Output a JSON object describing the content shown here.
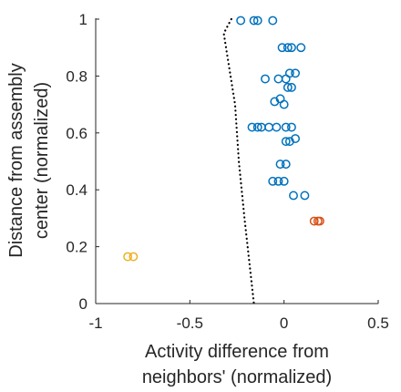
{
  "chart_data": {
    "type": "scatter",
    "title": "",
    "xlabel": [
      "Activity difference from",
      "neighbors' (normalized)"
    ],
    "ylabel": [
      "Distance from assembly",
      "center (normalized)"
    ],
    "xlim": [
      -1,
      0.5
    ],
    "ylim": [
      0,
      1
    ],
    "xticks": [
      -1,
      -0.5,
      0,
      0.5
    ],
    "xtick_labels": [
      "-1",
      "-0.5",
      "0",
      "0.5"
    ],
    "yticks": [
      0,
      0.2,
      0.4,
      0.6,
      0.8,
      1
    ],
    "ytick_labels": [
      "0",
      "0.2",
      "0.4",
      "0.6",
      "0.8",
      "1"
    ],
    "grid": false,
    "legend": "none",
    "marker": "open-circle",
    "series": [
      {
        "color": "#0072BD",
        "points": [
          [
            -0.23,
            0.995
          ],
          [
            -0.16,
            0.995
          ],
          [
            -0.14,
            0.995
          ],
          [
            -0.06,
            0.995
          ],
          [
            -0.01,
            0.9
          ],
          [
            0.02,
            0.9
          ],
          [
            0.04,
            0.9
          ],
          [
            0.09,
            0.9
          ],
          [
            -0.1,
            0.79
          ],
          [
            -0.03,
            0.79
          ],
          [
            0.01,
            0.79
          ],
          [
            0.03,
            0.81
          ],
          [
            0.06,
            0.81
          ],
          [
            0.02,
            0.76
          ],
          [
            0.04,
            0.76
          ],
          [
            -0.05,
            0.71
          ],
          [
            -0.02,
            0.72
          ],
          [
            0.0,
            0.7
          ],
          [
            -0.17,
            0.62
          ],
          [
            -0.14,
            0.62
          ],
          [
            -0.12,
            0.62
          ],
          [
            -0.08,
            0.62
          ],
          [
            -0.04,
            0.62
          ],
          [
            0.01,
            0.62
          ],
          [
            0.04,
            0.62
          ],
          [
            0.01,
            0.57
          ],
          [
            0.03,
            0.57
          ],
          [
            0.06,
            0.58
          ],
          [
            -0.02,
            0.49
          ],
          [
            0.01,
            0.49
          ],
          [
            -0.06,
            0.43
          ],
          [
            -0.03,
            0.43
          ],
          [
            0.0,
            0.43
          ],
          [
            0.05,
            0.38
          ],
          [
            0.11,
            0.38
          ]
        ]
      },
      {
        "color": "#D95319",
        "points": [
          [
            0.16,
            0.29
          ],
          [
            0.18,
            0.29
          ],
          [
            0.19,
            0.29
          ]
        ]
      },
      {
        "color": "#EDB120",
        "points": [
          [
            -0.83,
            0.165
          ],
          [
            -0.8,
            0.165
          ]
        ]
      }
    ],
    "reference_line": {
      "style": "dotted",
      "color": "#000000",
      "points": [
        [
          -0.28,
          1.0
        ],
        [
          -0.32,
          0.95
        ],
        [
          -0.26,
          0.7
        ],
        [
          -0.24,
          0.5
        ],
        [
          -0.21,
          0.3
        ],
        [
          -0.16,
          0.0
        ]
      ]
    }
  }
}
